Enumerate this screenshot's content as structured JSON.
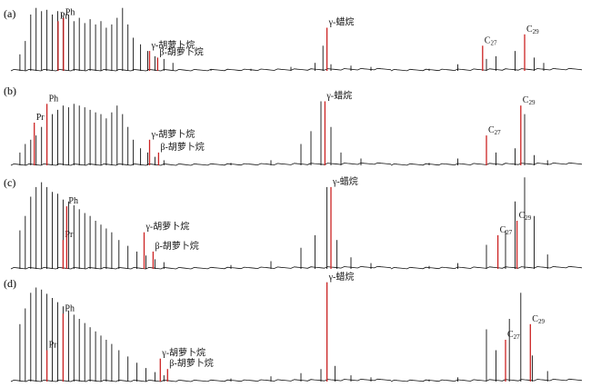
{
  "figure": {
    "panels": [
      "(a)",
      "(b)",
      "(c)",
      "(d)"
    ]
  },
  "colors": {
    "trace": "#111111",
    "marker": "#cc2222",
    "label": "#111111",
    "background": "#ffffff"
  },
  "chart_data": [
    {
      "type": "line",
      "panel": "(a)",
      "segments": [
        {
          "name": "",
          "peaks": [
            {
              "x": 0.05,
              "h": 0.25
            },
            {
              "x": 0.08,
              "h": 0.45
            },
            {
              "x": 0.11,
              "h": 0.85
            },
            {
              "x": 0.14,
              "h": 0.95
            },
            {
              "x": 0.17,
              "h": 0.9
            },
            {
              "x": 0.2,
              "h": 0.92
            },
            {
              "x": 0.23,
              "h": 0.85
            },
            {
              "x": 0.26,
              "h": 0.9
            },
            {
              "x": 0.29,
              "h": 0.82
            },
            {
              "x": 0.32,
              "h": 0.85
            },
            {
              "x": 0.35,
              "h": 0.75
            },
            {
              "x": 0.38,
              "h": 0.8
            },
            {
              "x": 0.41,
              "h": 0.72
            },
            {
              "x": 0.44,
              "h": 0.78
            },
            {
              "x": 0.47,
              "h": 0.7
            },
            {
              "x": 0.5,
              "h": 0.75
            },
            {
              "x": 0.53,
              "h": 0.65
            },
            {
              "x": 0.56,
              "h": 0.7
            },
            {
              "x": 0.59,
              "h": 0.8
            },
            {
              "x": 0.62,
              "h": 0.95
            },
            {
              "x": 0.65,
              "h": 0.7
            },
            {
              "x": 0.68,
              "h": 0.5
            },
            {
              "x": 0.72,
              "h": 0.4
            },
            {
              "x": 0.76,
              "h": 0.3
            },
            {
              "x": 0.8,
              "h": 0.22
            },
            {
              "x": 0.85,
              "h": 0.18
            },
            {
              "x": 0.9,
              "h": 0.12
            }
          ],
          "markers": [
            {
              "x": 0.262,
              "h": 0.75,
              "label": "Pr",
              "sub": ""
            },
            {
              "x": 0.292,
              "h": 0.8,
              "label": "Ph",
              "sub": ""
            },
            {
              "x": 0.77,
              "h": 0.3,
              "label": "γ-胡萝卜烷",
              "sub": ""
            },
            {
              "x": 0.815,
              "h": 0.2,
              "label": "β-胡萝卜烷",
              "sub": ""
            }
          ]
        },
        {
          "name": "",
          "peaks": [
            {
              "x": 0.1,
              "h": 0.02
            },
            {
              "x": 0.3,
              "h": 0.03
            },
            {
              "x": 0.5,
              "h": 0.06
            },
            {
              "x": 0.62,
              "h": 0.12
            },
            {
              "x": 0.66,
              "h": 0.38
            },
            {
              "x": 0.7,
              "h": 0.1
            },
            {
              "x": 0.8,
              "h": 0.08
            },
            {
              "x": 0.9,
              "h": 0.06
            }
          ],
          "markers": [
            {
              "x": 0.68,
              "h": 0.65,
              "label": "γ-蜡烷",
              "sub": ""
            }
          ]
        },
        {
          "name": "",
          "peaks": [
            {
              "x": 0.2,
              "h": 0.03
            },
            {
              "x": 0.35,
              "h": 0.1
            },
            {
              "x": 0.5,
              "h": 0.18
            },
            {
              "x": 0.55,
              "h": 0.22
            },
            {
              "x": 0.65,
              "h": 0.3
            },
            {
              "x": 0.7,
              "h": 0.45
            },
            {
              "x": 0.75,
              "h": 0.2
            },
            {
              "x": 0.8,
              "h": 0.12
            }
          ],
          "markers": [
            {
              "x": 0.48,
              "h": 0.38,
              "label": "C",
              "sub": "27"
            },
            {
              "x": 0.7,
              "h": 0.55,
              "label": "C",
              "sub": "29"
            }
          ]
        }
      ]
    },
    {
      "type": "line",
      "panel": "(b)",
      "segments": [
        {
          "name": "",
          "peaks": [
            {
              "x": 0.05,
              "h": 0.15
            },
            {
              "x": 0.08,
              "h": 0.25
            },
            {
              "x": 0.11,
              "h": 0.3
            },
            {
              "x": 0.14,
              "h": 0.35
            },
            {
              "x": 0.17,
              "h": 0.45
            },
            {
              "x": 0.2,
              "h": 0.55
            },
            {
              "x": 0.23,
              "h": 0.6
            },
            {
              "x": 0.26,
              "h": 0.65
            },
            {
              "x": 0.29,
              "h": 0.7
            },
            {
              "x": 0.32,
              "h": 0.68
            },
            {
              "x": 0.35,
              "h": 0.72
            },
            {
              "x": 0.38,
              "h": 0.7
            },
            {
              "x": 0.41,
              "h": 0.68
            },
            {
              "x": 0.44,
              "h": 0.65
            },
            {
              "x": 0.47,
              "h": 0.62
            },
            {
              "x": 0.5,
              "h": 0.6
            },
            {
              "x": 0.53,
              "h": 0.55
            },
            {
              "x": 0.56,
              "h": 0.62
            },
            {
              "x": 0.59,
              "h": 0.7
            },
            {
              "x": 0.62,
              "h": 0.6
            },
            {
              "x": 0.65,
              "h": 0.45
            },
            {
              "x": 0.68,
              "h": 0.3
            },
            {
              "x": 0.72,
              "h": 0.2
            },
            {
              "x": 0.76,
              "h": 0.15
            },
            {
              "x": 0.8,
              "h": 0.1
            },
            {
              "x": 0.85,
              "h": 0.06
            }
          ],
          "markers": [
            {
              "x": 0.13,
              "h": 0.5,
              "label": "Pr",
              "sub": ""
            },
            {
              "x": 0.2,
              "h": 0.72,
              "label": "Ph",
              "sub": ""
            },
            {
              "x": 0.77,
              "h": 0.3,
              "label": "γ-胡萝卜烷",
              "sub": ""
            },
            {
              "x": 0.82,
              "h": 0.15,
              "label": "β-胡萝卜烷",
              "sub": ""
            }
          ]
        },
        {
          "name": "",
          "peaks": [
            {
              "x": 0.2,
              "h": 0.03
            },
            {
              "x": 0.4,
              "h": 0.06
            },
            {
              "x": 0.55,
              "h": 0.25
            },
            {
              "x": 0.6,
              "h": 0.4
            },
            {
              "x": 0.65,
              "h": 0.75
            },
            {
              "x": 0.7,
              "h": 0.45
            },
            {
              "x": 0.75,
              "h": 0.15
            },
            {
              "x": 0.85,
              "h": 0.08
            }
          ],
          "markers": [
            {
              "x": 0.67,
              "h": 0.75,
              "label": "γ-蜡烷",
              "sub": ""
            }
          ]
        },
        {
          "name": "",
          "peaks": [
            {
              "x": 0.2,
              "h": 0.03
            },
            {
              "x": 0.35,
              "h": 0.08
            },
            {
              "x": 0.5,
              "h": 0.3
            },
            {
              "x": 0.55,
              "h": 0.15
            },
            {
              "x": 0.65,
              "h": 0.2
            },
            {
              "x": 0.7,
              "h": 0.6
            },
            {
              "x": 0.75,
              "h": 0.12
            },
            {
              "x": 0.82,
              "h": 0.06
            }
          ],
          "markers": [
            {
              "x": 0.5,
              "h": 0.35,
              "label": "C",
              "sub": "27"
            },
            {
              "x": 0.68,
              "h": 0.7,
              "label": "C",
              "sub": "29"
            }
          ]
        }
      ]
    },
    {
      "type": "line",
      "panel": "(c)",
      "segments": [
        {
          "name": "",
          "peaks": [
            {
              "x": 0.05,
              "h": 0.4
            },
            {
              "x": 0.08,
              "h": 0.55
            },
            {
              "x": 0.11,
              "h": 0.75
            },
            {
              "x": 0.14,
              "h": 0.85
            },
            {
              "x": 0.17,
              "h": 0.9
            },
            {
              "x": 0.2,
              "h": 0.85
            },
            {
              "x": 0.23,
              "h": 0.8
            },
            {
              "x": 0.26,
              "h": 0.78
            },
            {
              "x": 0.29,
              "h": 0.72
            },
            {
              "x": 0.32,
              "h": 0.7
            },
            {
              "x": 0.35,
              "h": 0.66
            },
            {
              "x": 0.38,
              "h": 0.62
            },
            {
              "x": 0.41,
              "h": 0.58
            },
            {
              "x": 0.44,
              "h": 0.55
            },
            {
              "x": 0.47,
              "h": 0.5
            },
            {
              "x": 0.5,
              "h": 0.46
            },
            {
              "x": 0.53,
              "h": 0.42
            },
            {
              "x": 0.56,
              "h": 0.38
            },
            {
              "x": 0.6,
              "h": 0.3
            },
            {
              "x": 0.65,
              "h": 0.24
            },
            {
              "x": 0.7,
              "h": 0.18
            },
            {
              "x": 0.75,
              "h": 0.14
            },
            {
              "x": 0.8,
              "h": 0.1
            },
            {
              "x": 0.85,
              "h": 0.07
            }
          ],
          "markers": [
            {
              "x": 0.29,
              "h": 0.3,
              "label": "Pr",
              "sub": ""
            },
            {
              "x": 0.31,
              "h": 0.65,
              "label": "Ph",
              "sub": ""
            },
            {
              "x": 0.74,
              "h": 0.38,
              "label": "γ-胡萝卜烷",
              "sub": ""
            },
            {
              "x": 0.79,
              "h": 0.18,
              "label": "β-胡萝卜烷",
              "sub": ""
            }
          ]
        },
        {
          "name": "",
          "peaks": [
            {
              "x": 0.2,
              "h": 0.04
            },
            {
              "x": 0.4,
              "h": 0.08
            },
            {
              "x": 0.55,
              "h": 0.22
            },
            {
              "x": 0.62,
              "h": 0.35
            },
            {
              "x": 0.68,
              "h": 0.85
            },
            {
              "x": 0.73,
              "h": 0.3
            },
            {
              "x": 0.8,
              "h": 0.12
            },
            {
              "x": 0.9,
              "h": 0.06
            }
          ],
          "markers": [
            {
              "x": 0.7,
              "h": 0.85,
              "label": "γ-蜡烷",
              "sub": ""
            }
          ]
        },
        {
          "name": "",
          "peaks": [
            {
              "x": 0.2,
              "h": 0.03
            },
            {
              "x": 0.35,
              "h": 0.06
            },
            {
              "x": 0.5,
              "h": 0.25
            },
            {
              "x": 0.6,
              "h": 0.4
            },
            {
              "x": 0.65,
              "h": 0.7
            },
            {
              "x": 0.7,
              "h": 0.95
            },
            {
              "x": 0.75,
              "h": 0.55
            },
            {
              "x": 0.82,
              "h": 0.15
            }
          ],
          "markers": [
            {
              "x": 0.56,
              "h": 0.35,
              "label": "C",
              "sub": "27"
            },
            {
              "x": 0.66,
              "h": 0.5,
              "label": "C",
              "sub": "29"
            }
          ]
        }
      ]
    },
    {
      "type": "line",
      "panel": "(d)",
      "segments": [
        {
          "name": "",
          "peaks": [
            {
              "x": 0.05,
              "h": 0.55
            },
            {
              "x": 0.08,
              "h": 0.7
            },
            {
              "x": 0.11,
              "h": 0.85
            },
            {
              "x": 0.14,
              "h": 0.9
            },
            {
              "x": 0.17,
              "h": 0.88
            },
            {
              "x": 0.2,
              "h": 0.84
            },
            {
              "x": 0.23,
              "h": 0.8
            },
            {
              "x": 0.26,
              "h": 0.76
            },
            {
              "x": 0.29,
              "h": 0.72
            },
            {
              "x": 0.32,
              "h": 0.68
            },
            {
              "x": 0.35,
              "h": 0.64
            },
            {
              "x": 0.38,
              "h": 0.6
            },
            {
              "x": 0.41,
              "h": 0.56
            },
            {
              "x": 0.44,
              "h": 0.52
            },
            {
              "x": 0.47,
              "h": 0.48
            },
            {
              "x": 0.5,
              "h": 0.44
            },
            {
              "x": 0.53,
              "h": 0.4
            },
            {
              "x": 0.56,
              "h": 0.36
            },
            {
              "x": 0.6,
              "h": 0.3
            },
            {
              "x": 0.65,
              "h": 0.24
            },
            {
              "x": 0.7,
              "h": 0.18
            },
            {
              "x": 0.75,
              "h": 0.13
            },
            {
              "x": 0.8,
              "h": 0.09
            },
            {
              "x": 0.85,
              "h": 0.06
            }
          ],
          "markers": [
            {
              "x": 0.2,
              "h": 0.3,
              "label": "Pr",
              "sub": ""
            },
            {
              "x": 0.29,
              "h": 0.65,
              "label": "Ph",
              "sub": ""
            },
            {
              "x": 0.83,
              "h": 0.22,
              "label": "γ-胡萝卜烷",
              "sub": ""
            },
            {
              "x": 0.87,
              "h": 0.12,
              "label": "β-胡萝卜烷",
              "sub": ""
            }
          ]
        },
        {
          "name": "",
          "peaks": [
            {
              "x": 0.2,
              "h": 0.03
            },
            {
              "x": 0.4,
              "h": 0.05
            },
            {
              "x": 0.55,
              "h": 0.08
            },
            {
              "x": 0.65,
              "h": 0.12
            },
            {
              "x": 0.68,
              "h": 0.95
            },
            {
              "x": 0.72,
              "h": 0.15
            },
            {
              "x": 0.8,
              "h": 0.06
            },
            {
              "x": 0.9,
              "h": 0.04
            }
          ],
          "markers": [
            {
              "x": 0.68,
              "h": 0.95,
              "label": "γ-蜡烷",
              "sub": ""
            }
          ]
        },
        {
          "name": "",
          "peaks": [
            {
              "x": 0.2,
              "h": 0.02
            },
            {
              "x": 0.35,
              "h": 0.04
            },
            {
              "x": 0.5,
              "h": 0.5
            },
            {
              "x": 0.55,
              "h": 0.3
            },
            {
              "x": 0.62,
              "h": 0.6
            },
            {
              "x": 0.68,
              "h": 0.85
            },
            {
              "x": 0.74,
              "h": 0.25
            },
            {
              "x": 0.82,
              "h": 0.1
            }
          ],
          "markers": [
            {
              "x": 0.6,
              "h": 0.4,
              "label": "C",
              "sub": "27"
            },
            {
              "x": 0.73,
              "h": 0.55,
              "label": "C",
              "sub": "29"
            }
          ]
        }
      ]
    }
  ]
}
